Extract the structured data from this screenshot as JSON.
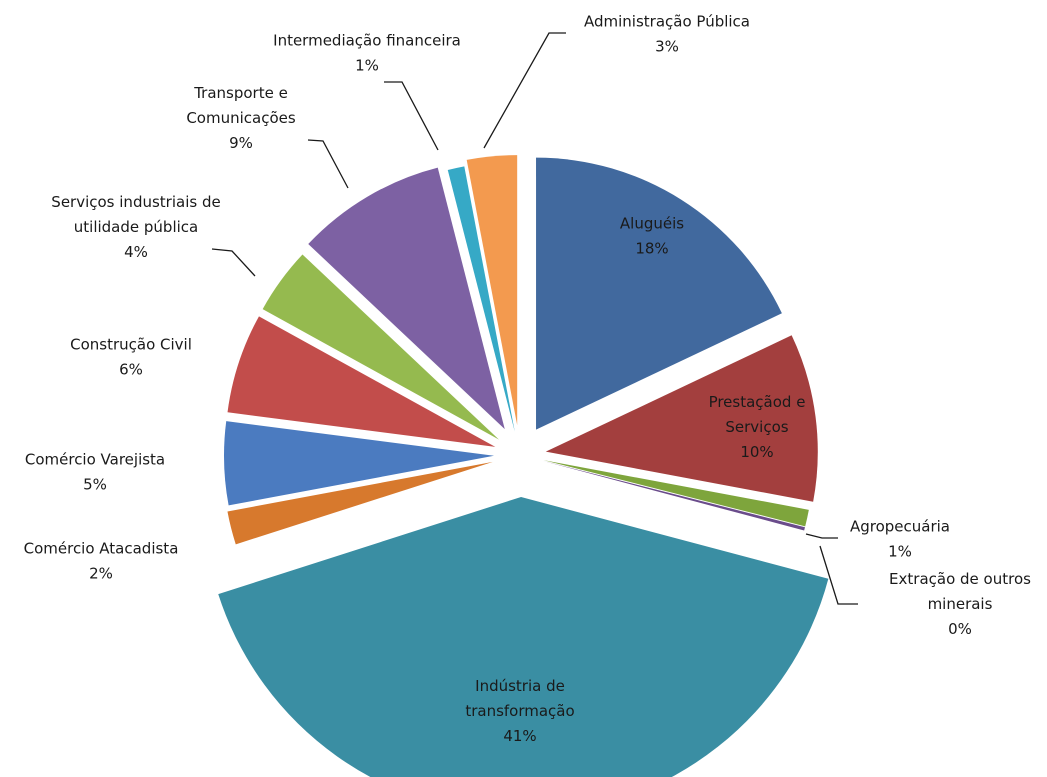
{
  "chart_data": {
    "type": "pie",
    "exploded": true,
    "legend": "none",
    "start_angle_deg": 0,
    "direction": "clockwise",
    "slices": [
      {
        "label": [
          "Aluguéis"
        ],
        "value": 18,
        "percent_label": "18%",
        "color": "#41699e"
      },
      {
        "label": [
          "Prestaçãod e",
          "Serviços"
        ],
        "value": 10,
        "percent_label": "10%",
        "color": "#a33f3e"
      },
      {
        "label": [
          "Agropecuária"
        ],
        "value": 1,
        "percent_label": "1%",
        "color": "#7ea53c"
      },
      {
        "label": [
          "Extração de outros",
          "minerais"
        ],
        "value": 0.2,
        "percent_label": "0%",
        "color": "#6a4c8b"
      },
      {
        "label": [
          "Indústria de",
          "transformação"
        ],
        "value": 41,
        "percent_label": "41%",
        "color": "#3a8ea3"
      },
      {
        "label": [
          "Comércio Atacadista"
        ],
        "value": 2,
        "percent_label": "2%",
        "color": "#d7792d"
      },
      {
        "label": [
          "Comércio Varejista"
        ],
        "value": 5,
        "percent_label": "5%",
        "color": "#4b7bc0"
      },
      {
        "label": [
          "Construção Civil"
        ],
        "value": 6,
        "percent_label": "6%",
        "color": "#c24d4b"
      },
      {
        "label": [
          "Serviços industriais de",
          "utilidade pública"
        ],
        "value": 4,
        "percent_label": "4%",
        "color": "#95ba4f"
      },
      {
        "label": [
          "Transporte e",
          "Comunicações"
        ],
        "value": 9,
        "percent_label": "9%",
        "color": "#7d61a3"
      },
      {
        "label": [
          "Intermediação financeira"
        ],
        "value": 1,
        "percent_label": "1%",
        "color": "#36a9c6"
      },
      {
        "label": [
          "Administração Pública"
        ],
        "value": 3,
        "percent_label": "3%",
        "color": "#f39a4f"
      }
    ]
  }
}
